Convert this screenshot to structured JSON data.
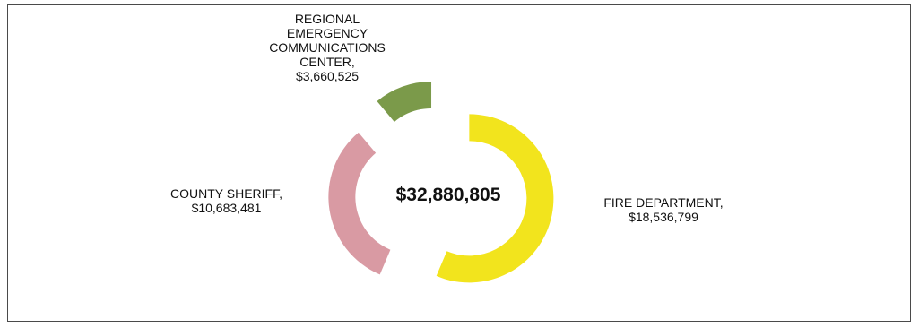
{
  "chart_data": {
    "type": "pie",
    "style": "donut-exploded",
    "center_label": "$32,880,805",
    "slices": [
      {
        "label": "FIRE DEPARTMENT,",
        "value_text": "$18,536,799",
        "value": 18536799,
        "color": "#f2e41d"
      },
      {
        "label": "COUNTY SHERIFF,",
        "value_text": "$10,683,481",
        "value": 10683481,
        "color": "#d99aa3"
      },
      {
        "label": "REGIONAL\nEMERGENCY\nCOMMUNICATIONS\nCENTER,",
        "value_text": "$3,660,525",
        "value": 3660525,
        "color": "#7b9a4a"
      }
    ]
  }
}
